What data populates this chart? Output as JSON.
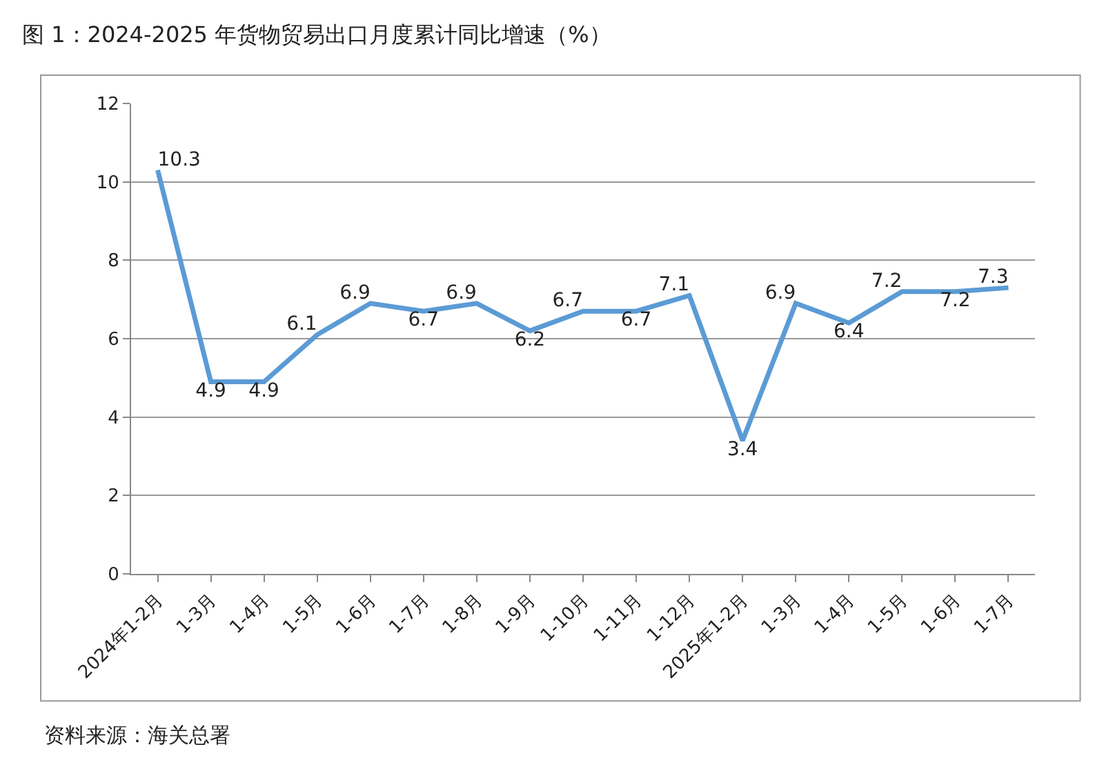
{
  "chart_data": {
    "type": "line",
    "title": "图 1：2024-2025 年货物贸易出口月度累计同比增速（%）",
    "categories": [
      "2024年1-2月",
      "1-3月",
      "1-4月",
      "1-5月",
      "1-6月",
      "1-7月",
      "1-8月",
      "1-9月",
      "1-10月",
      "1-11月",
      "1-12月",
      "2025年1-2月",
      "1-3月",
      "1-4月",
      "1-5月",
      "1-6月",
      "1-7月"
    ],
    "series": [
      {
        "color": "#5b9bd5",
        "values": [
          10.3,
          4.9,
          4.9,
          6.1,
          6.9,
          6.7,
          6.9,
          6.2,
          6.7,
          6.7,
          7.1,
          3.4,
          6.9,
          6.4,
          7.2,
          7.2,
          7.3
        ]
      }
    ],
    "ylim": [
      0,
      12
    ],
    "yticks": [
      0,
      2,
      4,
      6,
      8,
      10,
      12
    ],
    "grid": "y",
    "legend": false,
    "data_labels": true,
    "marker": "none",
    "line_style": "solid",
    "annotations": [
      "资料来源：海关总署"
    ]
  }
}
